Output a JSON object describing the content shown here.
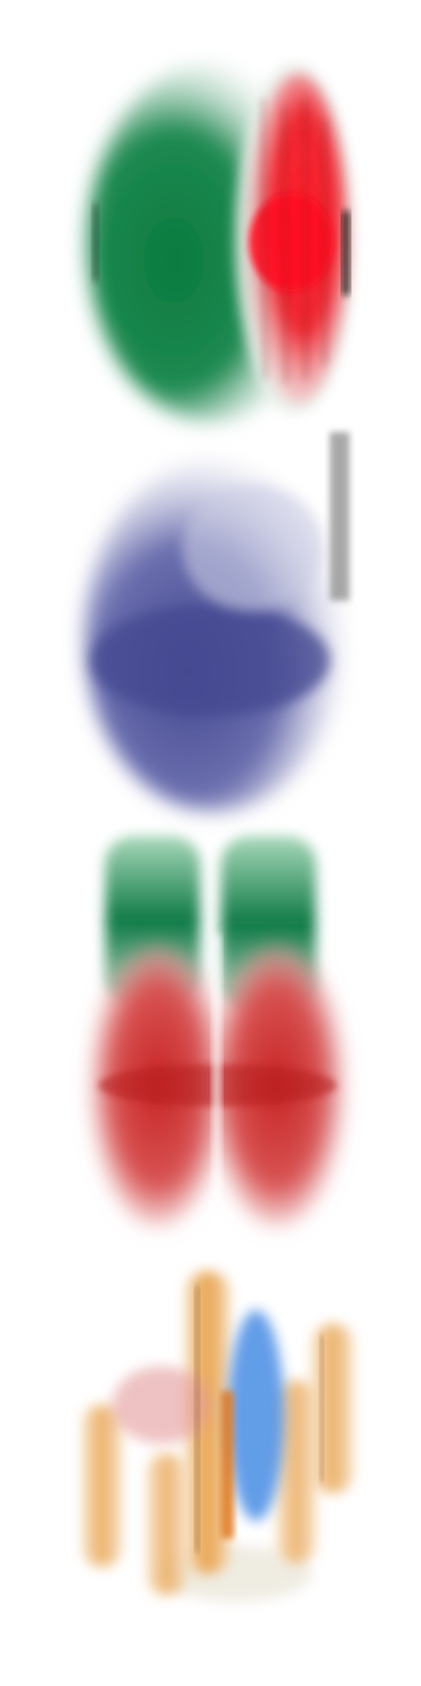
{
  "figures": [
    {
      "name": "watermelon-half",
      "colors": {
        "rind": "#0b7a3e",
        "flesh": "#ee1520",
        "seeds": "#5a1010"
      }
    },
    {
      "name": "blueberry",
      "colors": {
        "skin": "#454a92",
        "highlight": "#8d92c6"
      }
    },
    {
      "name": "cherries",
      "colors": {
        "stems_leaves": "#0d7a45",
        "fruit": "#c72222"
      }
    },
    {
      "name": "french-fries",
      "colors": {
        "fry": "#f0c796",
        "fry_dark": "#e0781a",
        "accent": "#2f7de1"
      }
    }
  ]
}
